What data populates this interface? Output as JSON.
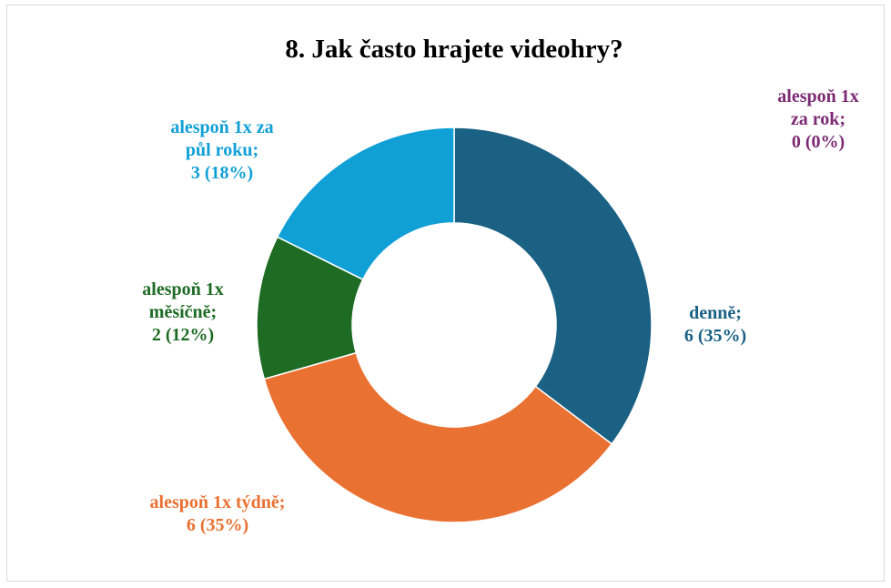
{
  "chart_data": {
    "type": "pie",
    "subtype": "donut",
    "title": "8. Jak často hrajete videohry?",
    "categories": [
      "denně",
      "alespoň 1x týdně",
      "alespoň 1x měsíčně",
      "alespoň 1x za půl roku",
      "alespoň 1x za rok"
    ],
    "values": [
      6,
      6,
      2,
      3,
      0
    ],
    "percent_labels": [
      "35%",
      "35%",
      "12%",
      "18%",
      "0%"
    ],
    "colors": [
      "#1a6184",
      "#e97132",
      "#1e6b24",
      "#10a0d6",
      "#7b2a73"
    ],
    "data_labels": [
      [
        "denně;",
        "6 (35%)"
      ],
      [
        "alespoň 1x týdně;",
        "6 (35%)"
      ],
      [
        "alespoň 1x",
        "měsíčně;",
        "2 (12%)"
      ],
      [
        "alespoň 1x za",
        "půl roku;",
        "3 (18%)"
      ],
      [
        "alespoň 1x",
        "za rok;",
        "0 (0%)"
      ]
    ],
    "legend": "none"
  }
}
